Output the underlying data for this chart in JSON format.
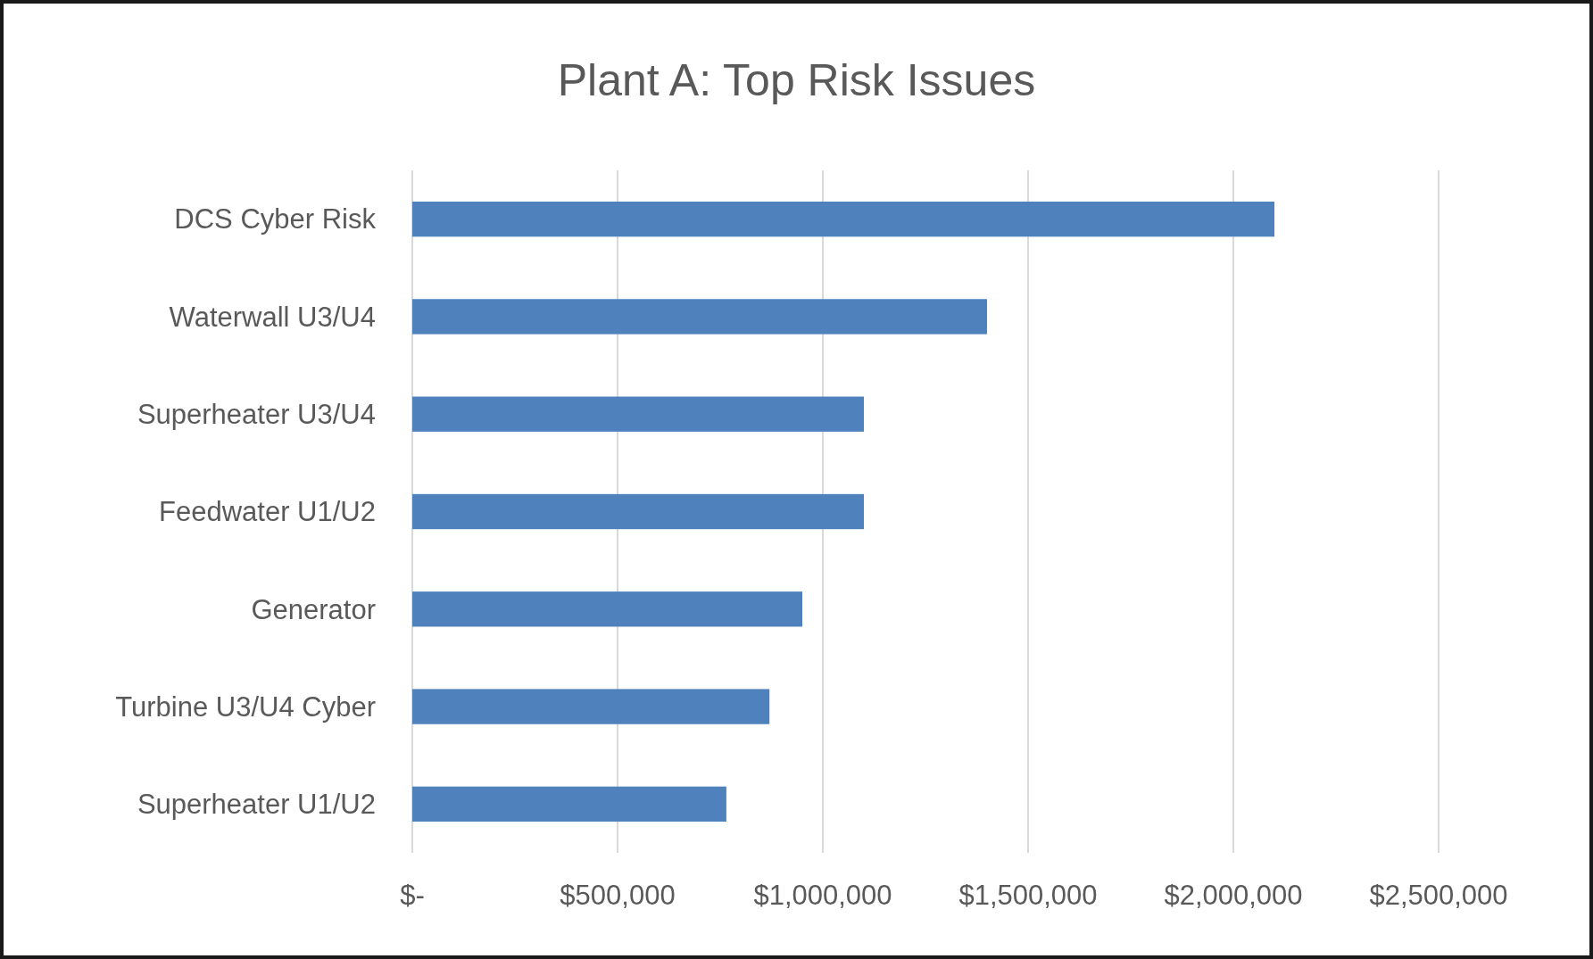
{
  "chart_data": {
    "type": "bar",
    "orientation": "horizontal",
    "title": "Plant A: Top Risk Issues",
    "categories": [
      "DCS Cyber Risk",
      "Waterwall U3/U4",
      "Superheater U3/U4",
      "Feedwater U1/U2",
      "Generator",
      "Turbine U3/U4 Cyber",
      "Superheater U1/U2"
    ],
    "values": [
      2100000,
      1400000,
      1100000,
      1100000,
      950000,
      870000,
      765000
    ],
    "color": "#4f81bd",
    "xlim": [
      0,
      2500000
    ],
    "xticks": [
      {
        "value": 0,
        "label": "$-"
      },
      {
        "value": 500000,
        "label": "$500,000"
      },
      {
        "value": 1000000,
        "label": "$1,000,000"
      },
      {
        "value": 1500000,
        "label": "$1,500,000"
      },
      {
        "value": 2000000,
        "label": "$2,000,000"
      },
      {
        "value": 2500000,
        "label": "$2,500,000"
      }
    ],
    "grid": "x"
  }
}
